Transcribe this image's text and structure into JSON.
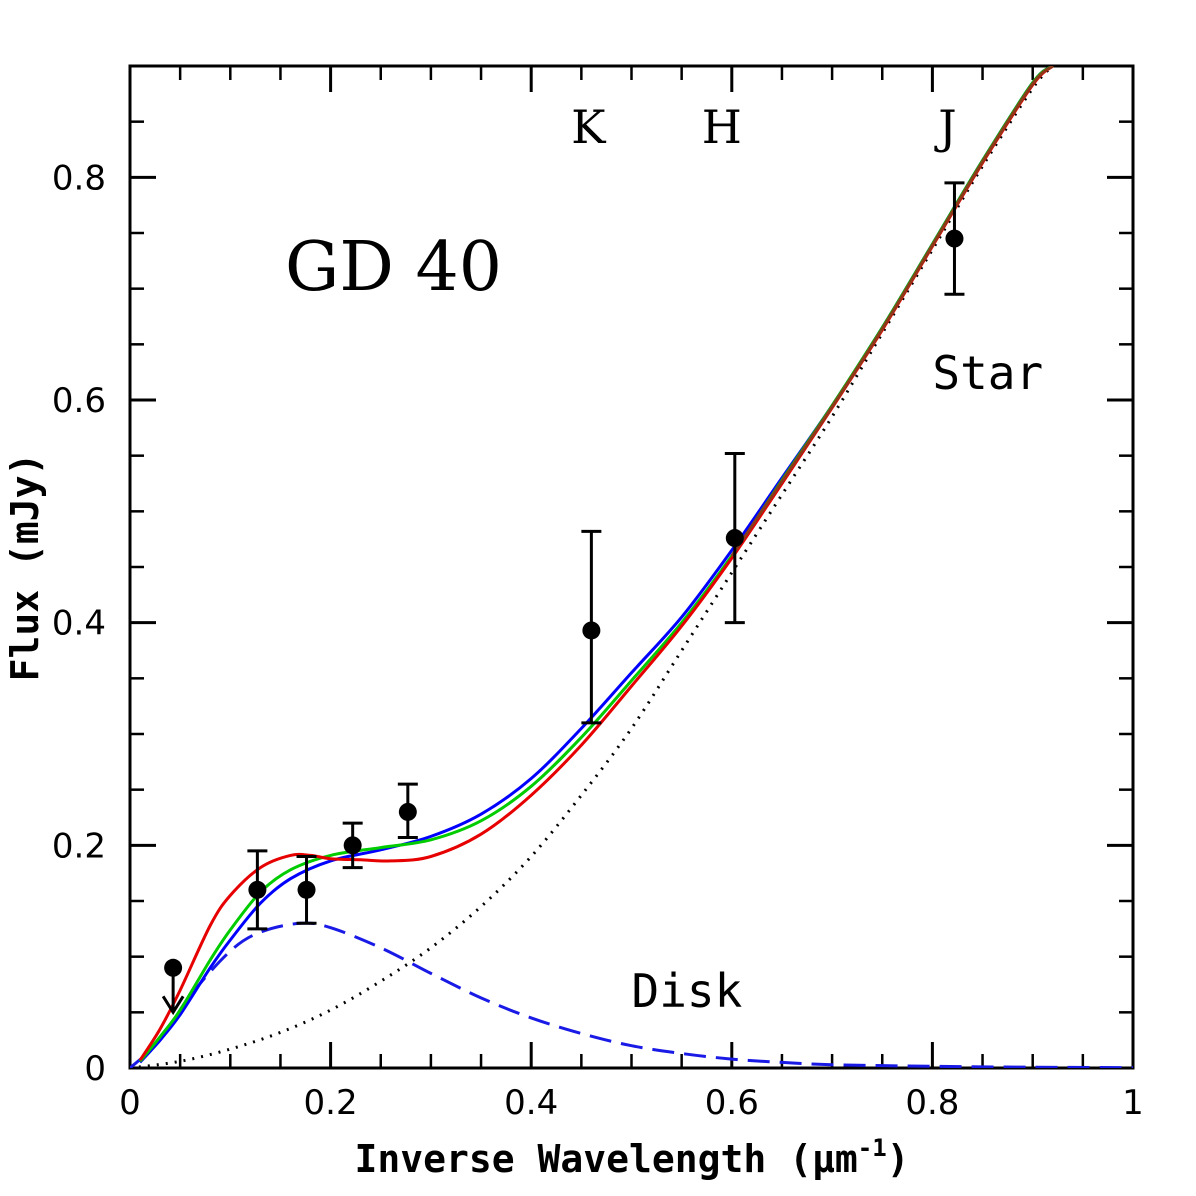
{
  "chart_data": {
    "type": "line",
    "title": "GD 40",
    "xlabel": "Inverse Wavelength (μm",
    "xlabel_superscript": "-1",
    "xlabel_close": ")",
    "ylabel": "Flux (mJy)",
    "xlim": [
      0,
      1
    ],
    "ylim": [
      0,
      0.9
    ],
    "x_ticks": [
      {
        "value": 0,
        "label": "0"
      },
      {
        "value": 0.2,
        "label": "0.2"
      },
      {
        "value": 0.4,
        "label": "0.4"
      },
      {
        "value": 0.6,
        "label": "0.6"
      },
      {
        "value": 0.8,
        "label": "0.8"
      },
      {
        "value": 1,
        "label": "1"
      }
    ],
    "y_ticks": [
      {
        "value": 0,
        "label": "0"
      },
      {
        "value": 0.2,
        "label": "0.2"
      },
      {
        "value": 0.4,
        "label": "0.4"
      },
      {
        "value": 0.6,
        "label": "0.6"
      },
      {
        "value": 0.8,
        "label": "0.8"
      }
    ],
    "band_labels": [
      {
        "x": 0.457,
        "label": "K"
      },
      {
        "x": 0.59,
        "label": "H"
      },
      {
        "x": 0.815,
        "label": "J"
      }
    ],
    "annotations": [
      {
        "text": "Star",
        "x": 0.8,
        "y": 0.61
      },
      {
        "text": "Disk",
        "x": 0.5,
        "y": 0.055
      }
    ],
    "observations": [
      {
        "x": 0.043,
        "y": 0.09,
        "upper_limit": true
      },
      {
        "x": 0.127,
        "y": 0.16,
        "yerr_low": 0.125,
        "yerr_high": 0.195
      },
      {
        "x": 0.176,
        "y": 0.16,
        "yerr_low": 0.13,
        "yerr_high": 0.19
      },
      {
        "x": 0.222,
        "y": 0.2,
        "yerr_low": 0.18,
        "yerr_high": 0.22
      },
      {
        "x": 0.277,
        "y": 0.23,
        "yerr_low": 0.207,
        "yerr_high": 0.255
      },
      {
        "x": 0.46,
        "y": 0.393,
        "yerr_low": 0.31,
        "yerr_high": 0.482
      },
      {
        "x": 0.603,
        "y": 0.476,
        "yerr_low": 0.4,
        "yerr_high": 0.552
      },
      {
        "x": 0.822,
        "y": 0.745,
        "yerr_low": 0.695,
        "yerr_high": 0.795
      }
    ],
    "series": [
      {
        "color": "#000000",
        "style": "dotted",
        "x": [
          0,
          0.05,
          0.1,
          0.15,
          0.2,
          0.25,
          0.3,
          0.35,
          0.4,
          0.45,
          0.5,
          0.55,
          0.6,
          0.65,
          0.7,
          0.75,
          0.8,
          0.85,
          0.9,
          0.92
        ],
        "y": [
          0,
          0.006,
          0.017,
          0.032,
          0.052,
          0.078,
          0.108,
          0.145,
          0.19,
          0.245,
          0.305,
          0.375,
          0.445,
          0.515,
          0.585,
          0.66,
          0.735,
          0.81,
          0.88,
          0.9
        ]
      },
      {
        "color": "#1a1ae6",
        "style": "dashed",
        "x": [
          0,
          0.03,
          0.06,
          0.1,
          0.13,
          0.17,
          0.2,
          0.25,
          0.3,
          0.35,
          0.4,
          0.45,
          0.5,
          0.55,
          0.6,
          0.65,
          0.7,
          0.8,
          0.9,
          1.0
        ],
        "y": [
          0,
          0.025,
          0.065,
          0.105,
          0.122,
          0.13,
          0.126,
          0.108,
          0.085,
          0.063,
          0.045,
          0.031,
          0.02,
          0.013,
          0.008,
          0.005,
          0.003,
          0.0015,
          0.0007,
          0.0003
        ]
      },
      {
        "color": "#0000ff",
        "style": "solid",
        "x": [
          0.01,
          0.03,
          0.05,
          0.08,
          0.1,
          0.13,
          0.16,
          0.2,
          0.25,
          0.3,
          0.35,
          0.4,
          0.45,
          0.5,
          0.55,
          0.6,
          0.65,
          0.7,
          0.75,
          0.8,
          0.85,
          0.9,
          0.92
        ],
        "y": [
          0.005,
          0.025,
          0.048,
          0.09,
          0.115,
          0.148,
          0.17,
          0.186,
          0.196,
          0.208,
          0.228,
          0.26,
          0.305,
          0.355,
          0.405,
          0.465,
          0.53,
          0.595,
          0.665,
          0.74,
          0.815,
          0.885,
          0.9
        ]
      },
      {
        "color": "#00cc00",
        "style": "solid",
        "x": [
          0.01,
          0.03,
          0.05,
          0.08,
          0.1,
          0.13,
          0.16,
          0.2,
          0.25,
          0.3,
          0.35,
          0.4,
          0.45,
          0.5,
          0.55,
          0.6,
          0.65,
          0.7,
          0.75,
          0.8,
          0.85,
          0.9,
          0.92
        ],
        "y": [
          0.006,
          0.028,
          0.052,
          0.097,
          0.124,
          0.158,
          0.178,
          0.191,
          0.198,
          0.205,
          0.222,
          0.253,
          0.297,
          0.348,
          0.4,
          0.46,
          0.528,
          0.595,
          0.665,
          0.74,
          0.815,
          0.885,
          0.9
        ]
      },
      {
        "color": "#e60000",
        "style": "solid",
        "x": [
          0.01,
          0.03,
          0.05,
          0.08,
          0.1,
          0.13,
          0.16,
          0.18,
          0.2,
          0.23,
          0.26,
          0.3,
          0.35,
          0.4,
          0.45,
          0.5,
          0.55,
          0.6,
          0.65,
          0.7,
          0.75,
          0.8,
          0.85,
          0.9,
          0.92
        ],
        "y": [
          0.007,
          0.035,
          0.07,
          0.128,
          0.155,
          0.18,
          0.191,
          0.191,
          0.188,
          0.187,
          0.186,
          0.19,
          0.21,
          0.245,
          0.29,
          0.343,
          0.397,
          0.458,
          0.525,
          0.593,
          0.663,
          0.738,
          0.813,
          0.883,
          0.9
        ]
      },
      {
        "color": "#8b3a1a",
        "style": "solid",
        "x": [
          0.6,
          0.65,
          0.7,
          0.75,
          0.8,
          0.85,
          0.9,
          0.92
        ],
        "y": [
          0.46,
          0.527,
          0.594,
          0.664,
          0.739,
          0.814,
          0.884,
          0.9
        ]
      }
    ]
  }
}
